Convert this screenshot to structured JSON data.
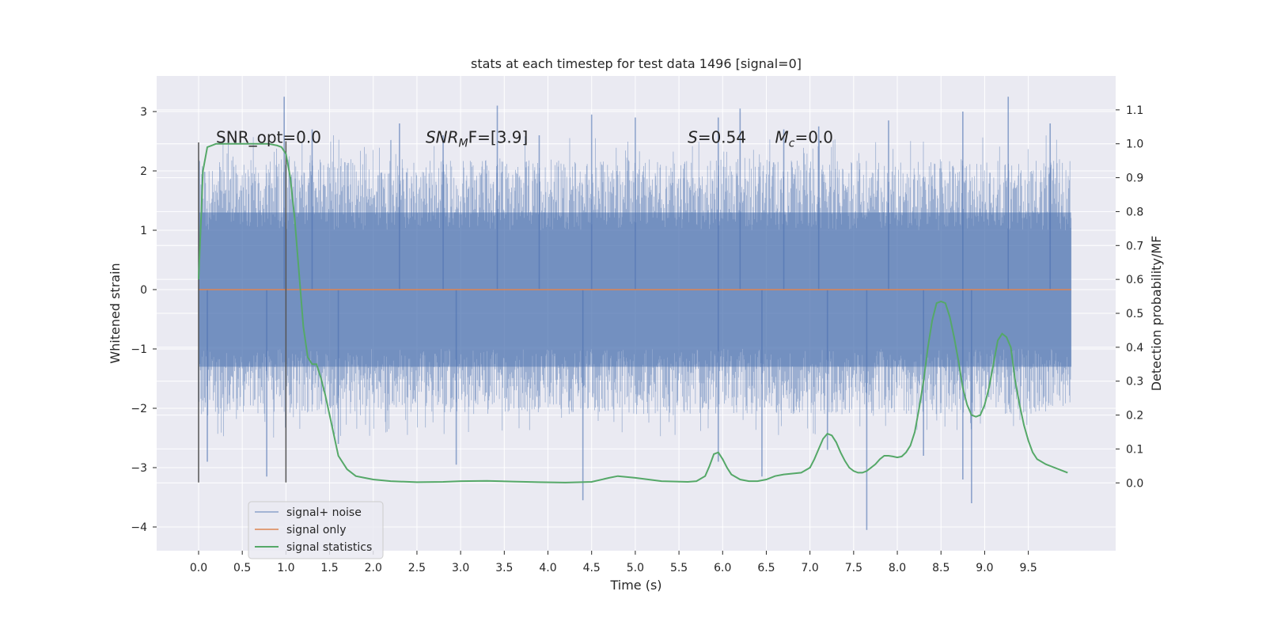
{
  "chart_data": {
    "type": "line",
    "title": "stats at each timestep for test data 1496 [signal=0]",
    "xlabel": "Time (s)",
    "ylabel_left": "Whitened strain",
    "ylabel_right": "Detection probability/MF",
    "xlim": [
      -0.48,
      10.5
    ],
    "ylim_left": [
      -4.4,
      3.6
    ],
    "ylim_right": [
      -0.2,
      1.2
    ],
    "x_ticks": [
      0.0,
      0.5,
      1.0,
      1.5,
      2.0,
      2.5,
      3.0,
      3.5,
      4.0,
      4.5,
      5.0,
      5.5,
      6.0,
      6.5,
      7.0,
      7.5,
      8.0,
      8.5,
      9.0,
      9.5
    ],
    "x_tick_labels": [
      "0.0",
      "0.5",
      "1.0",
      "1.5",
      "2.0",
      "2.5",
      "3.0",
      "3.5",
      "4.0",
      "4.5",
      "5.0",
      "5.5",
      "6.0",
      "6.5",
      "7.0",
      "7.5",
      "8.0",
      "8.5",
      "9.0",
      "9.5"
    ],
    "y_ticks_left": [
      3,
      2,
      1,
      0,
      -1,
      -2,
      -3,
      -4
    ],
    "y_tick_labels_left": [
      "3",
      "2",
      "1",
      "0",
      "−1",
      "−2",
      "−3",
      "−4"
    ],
    "y_ticks_right": [
      1.1,
      1.0,
      0.9,
      0.8,
      0.7,
      0.6,
      0.5,
      0.4,
      0.3,
      0.2,
      0.1,
      0.0
    ],
    "y_tick_labels_right": [
      "1.1",
      "1.0",
      "0.9",
      "0.8",
      "0.7",
      "0.6",
      "0.5",
      "0.4",
      "0.3",
      "0.2",
      "0.1",
      "0.0"
    ],
    "grid": true,
    "legend_position": "lower-left",
    "series": [
      {
        "name": "signal+ noise",
        "color": "#4c72b0",
        "axis": "left",
        "kind": "noise-band",
        "x_range": [
          0.0,
          9.99
        ],
        "core_range": [
          -1.3,
          1.3
        ],
        "envelope_range": [
          -2.1,
          2.2
        ],
        "peaks_up": [
          {
            "x": 0.98,
            "y": 3.25
          },
          {
            "x": 3.42,
            "y": 3.1
          },
          {
            "x": 6.2,
            "y": 3.05
          },
          {
            "x": 9.27,
            "y": 3.25
          },
          {
            "x": 1.3,
            "y": 2.7
          },
          {
            "x": 2.3,
            "y": 2.8
          },
          {
            "x": 4.5,
            "y": 2.95
          },
          {
            "x": 5.0,
            "y": 2.9
          },
          {
            "x": 5.95,
            "y": 2.9
          },
          {
            "x": 7.1,
            "y": 2.75
          },
          {
            "x": 7.9,
            "y": 2.85
          },
          {
            "x": 8.75,
            "y": 3.0
          },
          {
            "x": 9.75,
            "y": 2.8
          },
          {
            "x": 2.8,
            "y": 2.6
          },
          {
            "x": 3.9,
            "y": 2.6
          },
          {
            "x": 6.7,
            "y": 2.7
          }
        ],
        "peaks_down": [
          {
            "x": 4.4,
            "y": -3.55
          },
          {
            "x": 7.65,
            "y": -4.05
          },
          {
            "x": 8.85,
            "y": -3.6
          },
          {
            "x": 0.78,
            "y": -3.15
          },
          {
            "x": 2.95,
            "y": -2.95
          },
          {
            "x": 6.45,
            "y": -3.15
          },
          {
            "x": 8.75,
            "y": -3.2
          },
          {
            "x": 5.95,
            "y": -2.9
          },
          {
            "x": 0.1,
            "y": -2.9
          },
          {
            "x": 8.3,
            "y": -2.8
          },
          {
            "x": 1.6,
            "y": -2.6
          },
          {
            "x": 7.2,
            "y": -2.7
          }
        ]
      },
      {
        "name": "signal only",
        "color": "#dd8452",
        "axis": "left",
        "x": [
          0.0,
          9.99
        ],
        "y": [
          0.0,
          0.0
        ]
      },
      {
        "name": "signal statistics",
        "color": "#55a868",
        "axis": "right",
        "x": [
          0.0,
          0.05,
          0.1,
          0.15,
          0.2,
          0.3,
          0.4,
          0.5,
          0.6,
          0.7,
          0.8,
          0.9,
          0.95,
          1.0,
          1.05,
          1.1,
          1.15,
          1.2,
          1.25,
          1.3,
          1.35,
          1.4,
          1.45,
          1.5,
          1.55,
          1.6,
          1.7,
          1.8,
          1.9,
          2.0,
          2.2,
          2.5,
          2.8,
          3.0,
          3.3,
          3.6,
          3.9,
          4.2,
          4.5,
          4.7,
          4.8,
          5.0,
          5.3,
          5.6,
          5.7,
          5.8,
          5.85,
          5.9,
          5.95,
          6.0,
          6.05,
          6.1,
          6.2,
          6.3,
          6.4,
          6.5,
          6.6,
          6.7,
          6.9,
          7.0,
          7.05,
          7.1,
          7.15,
          7.2,
          7.25,
          7.3,
          7.35,
          7.4,
          7.45,
          7.5,
          7.55,
          7.6,
          7.65,
          7.7,
          7.75,
          7.8,
          7.85,
          7.9,
          7.95,
          8.0,
          8.05,
          8.1,
          8.15,
          8.2,
          8.25,
          8.3,
          8.35,
          8.4,
          8.45,
          8.5,
          8.55,
          8.6,
          8.65,
          8.7,
          8.75,
          8.8,
          8.85,
          8.9,
          8.95,
          9.0,
          9.05,
          9.1,
          9.15,
          9.2,
          9.25,
          9.3,
          9.35,
          9.4,
          9.45,
          9.5,
          9.55,
          9.6,
          9.7,
          9.8,
          9.9,
          9.95
        ],
        "y": [
          0.6,
          0.92,
          0.99,
          0.995,
          1.0,
          1.0,
          1.0,
          1.0,
          1.0,
          1.0,
          1.0,
          0.995,
          0.99,
          0.97,
          0.9,
          0.78,
          0.62,
          0.46,
          0.37,
          0.35,
          0.35,
          0.31,
          0.26,
          0.2,
          0.14,
          0.08,
          0.04,
          0.02,
          0.015,
          0.01,
          0.005,
          0.002,
          0.003,
          0.005,
          0.006,
          0.004,
          0.002,
          0.001,
          0.003,
          0.015,
          0.02,
          0.015,
          0.005,
          0.003,
          0.005,
          0.02,
          0.05,
          0.085,
          0.09,
          0.07,
          0.045,
          0.025,
          0.01,
          0.005,
          0.005,
          0.01,
          0.02,
          0.025,
          0.03,
          0.045,
          0.07,
          0.1,
          0.13,
          0.145,
          0.14,
          0.12,
          0.09,
          0.065,
          0.045,
          0.035,
          0.03,
          0.03,
          0.035,
          0.045,
          0.055,
          0.07,
          0.08,
          0.08,
          0.078,
          0.075,
          0.078,
          0.09,
          0.11,
          0.15,
          0.22,
          0.3,
          0.4,
          0.48,
          0.53,
          0.535,
          0.53,
          0.49,
          0.43,
          0.36,
          0.28,
          0.23,
          0.2,
          0.195,
          0.2,
          0.23,
          0.28,
          0.35,
          0.42,
          0.44,
          0.43,
          0.4,
          0.3,
          0.23,
          0.17,
          0.125,
          0.09,
          0.07,
          0.055,
          0.045,
          0.035,
          0.03
        ]
      }
    ],
    "vertical_lines": [
      {
        "x": 0.0,
        "y": [
          -3.25,
          2.48
        ],
        "color": "#555555"
      },
      {
        "x": 1.0,
        "y": [
          -3.25,
          2.5
        ],
        "color": "#555555"
      }
    ],
    "annotations": [
      {
        "text": "SNR_opt=0.0",
        "x": 0.2,
        "y": 2.5
      },
      {
        "base": "SNR",
        "sub": "M",
        "rest": "F=[3.9]",
        "x": 2.6,
        "y": 2.5
      },
      {
        "base": "S",
        "rest": "=0.54",
        "x": 5.6,
        "y": 2.5
      },
      {
        "base": "M",
        "sub": "c",
        "rest": "=0.0",
        "x": 6.6,
        "y": 2.5
      }
    ]
  }
}
